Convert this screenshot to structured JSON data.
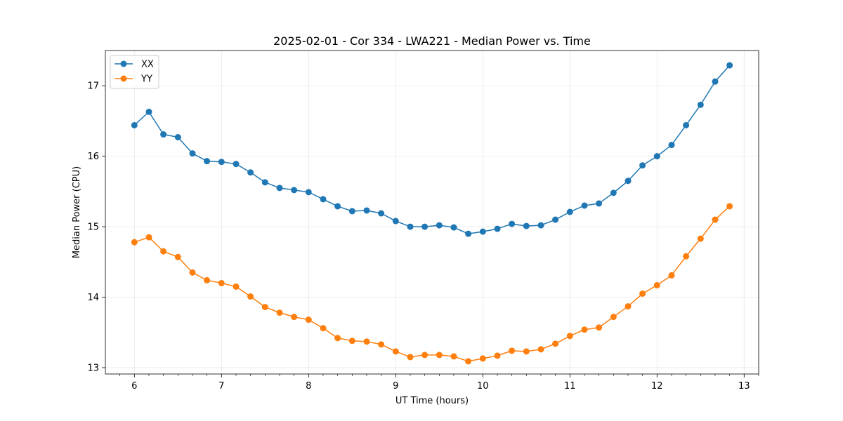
{
  "chart_data": {
    "type": "line",
    "title": "2025-02-01 - Cor 334 - LWA221 - Median Power vs. Time",
    "xlabel": "UT Time (hours)",
    "ylabel": "Median Power (CPU)",
    "xlim": [
      5.667,
      13.167
    ],
    "ylim": [
      12.91,
      17.5
    ],
    "xticks": [
      6,
      7,
      8,
      9,
      10,
      11,
      12,
      13
    ],
    "yticks": [
      13,
      14,
      15,
      16,
      17
    ],
    "grid": true,
    "legend_position": "upper-left",
    "x": [
      6.0,
      6.167,
      6.333,
      6.5,
      6.667,
      6.833,
      7.0,
      7.167,
      7.333,
      7.5,
      7.667,
      7.833,
      8.0,
      8.167,
      8.333,
      8.5,
      8.667,
      8.833,
      9.0,
      9.167,
      9.333,
      9.5,
      9.667,
      9.833,
      10.0,
      10.167,
      10.333,
      10.5,
      10.667,
      10.833,
      11.0,
      11.167,
      11.333,
      11.5,
      11.667,
      11.833,
      12.0,
      12.167,
      12.333,
      12.5,
      12.667,
      12.833
    ],
    "series": [
      {
        "name": "XX",
        "color": "#1f77b4",
        "values": [
          16.44,
          16.63,
          16.31,
          16.27,
          16.04,
          15.93,
          15.92,
          15.89,
          15.77,
          15.63,
          15.55,
          15.52,
          15.49,
          15.39,
          15.29,
          15.22,
          15.23,
          15.19,
          15.08,
          15.0,
          15.0,
          15.02,
          14.99,
          14.9,
          14.93,
          14.97,
          15.04,
          15.01,
          15.02,
          15.1,
          15.21,
          15.3,
          15.33,
          15.48,
          15.65,
          15.87,
          16.0,
          16.16,
          16.44,
          16.73,
          17.06,
          17.29
        ]
      },
      {
        "name": "YY",
        "color": "#ff7f0e",
        "values": [
          14.78,
          14.85,
          14.65,
          14.57,
          14.35,
          14.24,
          14.2,
          14.15,
          14.01,
          13.86,
          13.78,
          13.72,
          13.68,
          13.56,
          13.42,
          13.38,
          13.37,
          13.33,
          13.23,
          13.15,
          13.18,
          13.18,
          13.16,
          13.09,
          13.13,
          13.17,
          13.24,
          13.23,
          13.26,
          13.34,
          13.45,
          13.54,
          13.57,
          13.72,
          13.87,
          14.05,
          14.17,
          14.31,
          14.58,
          14.83,
          15.1,
          15.29
        ]
      }
    ]
  }
}
